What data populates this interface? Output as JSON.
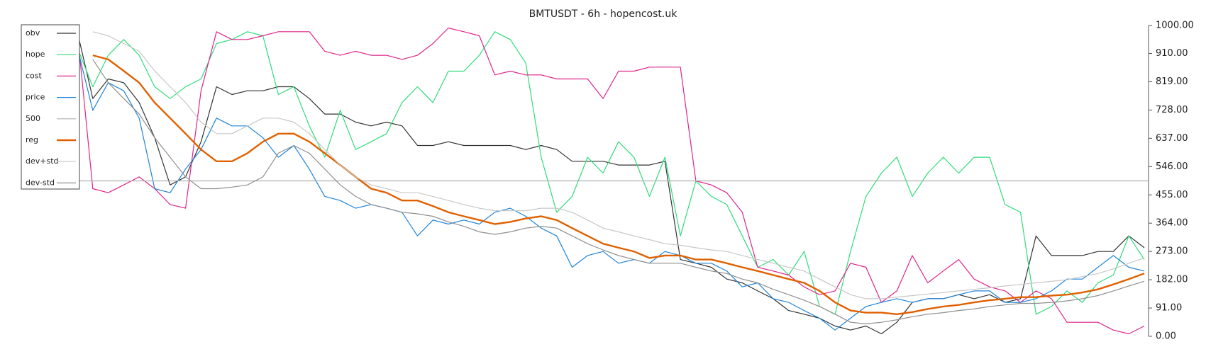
{
  "chart_data": {
    "type": "line",
    "title": "BMTUSDT - 6h - hopencost.uk",
    "ylim": [
      0,
      1000
    ],
    "yticks": [
      {
        "value": 0,
        "label": "0.00"
      },
      {
        "value": 91,
        "label": "91.00"
      },
      {
        "value": 182,
        "label": "182.00"
      },
      {
        "value": 273,
        "label": "273.00"
      },
      {
        "value": 364,
        "label": "364.00"
      },
      {
        "value": 455,
        "label": "455.00"
      },
      {
        "value": 546,
        "label": "546.00"
      },
      {
        "value": 637,
        "label": "637.00"
      },
      {
        "value": 728,
        "label": "728.00"
      },
      {
        "value": 819,
        "label": "819.00"
      },
      {
        "value": 910,
        "label": "910.00"
      },
      {
        "value": 1000,
        "label": "1000.00"
      }
    ],
    "legend": "top-left",
    "series": [
      {
        "name": "obv",
        "color": "#333333",
        "values": [
          980,
          765,
          828,
          816,
          752,
          639,
          487,
          513,
          626,
          803,
          778,
          790,
          790,
          803,
          803,
          765,
          715,
          715,
          689,
          677,
          689,
          677,
          614,
          614,
          626,
          614,
          614,
          614,
          614,
          601,
          614,
          601,
          563,
          563,
          563,
          551,
          551,
          551,
          563,
          247,
          235,
          222,
          184,
          172,
          146,
          121,
          83,
          71,
          58,
          33,
          20,
          33,
          8,
          45,
          109,
          121,
          121,
          134,
          121,
          134,
          109,
          121,
          323,
          260,
          260,
          260,
          273,
          273,
          323,
          285
        ]
      },
      {
        "name": "hope",
        "color": "#2fdc7a",
        "values": [
          929,
          803,
          904,
          955,
          904,
          803,
          765,
          803,
          828,
          942,
          955,
          980,
          967,
          778,
          803,
          677,
          576,
          727,
          601,
          626,
          652,
          752,
          803,
          752,
          853,
          853,
          904,
          980,
          955,
          879,
          576,
          399,
          450,
          576,
          525,
          626,
          576,
          450,
          576,
          323,
          500,
          450,
          424,
          323,
          222,
          247,
          197,
          273,
          96,
          71,
          273,
          450,
          525,
          576,
          450,
          525,
          576,
          525,
          576,
          576,
          424,
          399,
          71,
          96,
          146,
          109,
          172,
          197,
          323,
          247
        ]
      },
      {
        "name": "cost",
        "color": "#e0248a",
        "values": [
          980,
          475,
          462,
          487,
          513,
          475,
          424,
          412,
          790,
          980,
          955,
          955,
          967,
          980,
          980,
          980,
          917,
          904,
          917,
          904,
          904,
          891,
          904,
          942,
          992,
          980,
          967,
          841,
          853,
          841,
          841,
          828,
          828,
          828,
          765,
          853,
          853,
          866,
          866,
          866,
          500,
          487,
          462,
          399,
          222,
          210,
          197,
          159,
          134,
          146,
          235,
          222,
          109,
          146,
          260,
          172,
          210,
          247,
          184,
          159,
          146,
          109,
          146,
          121,
          45,
          45,
          45,
          20,
          8,
          33
        ]
      },
      {
        "name": "price",
        "color": "#1f84d8",
        "values": [
          929,
          727,
          816,
          790,
          702,
          475,
          462,
          538,
          601,
          702,
          677,
          677,
          639,
          576,
          614,
          538,
          450,
          437,
          412,
          424,
          412,
          399,
          323,
          374,
          361,
          374,
          361,
          399,
          412,
          386,
          348,
          323,
          222,
          260,
          273,
          235,
          247,
          235,
          273,
          260,
          235,
          235,
          210,
          159,
          172,
          121,
          109,
          83,
          58,
          20,
          58,
          96,
          109,
          121,
          109,
          121,
          121,
          134,
          146,
          146,
          109,
          109,
          121,
          146,
          184,
          184,
          222,
          260,
          222,
          210
        ]
      },
      {
        "name": "500",
        "color": "#b0b0b0",
        "value": 500
      },
      {
        "name": "reg",
        "color": "#e06000",
        "values": [
          null,
          904,
          891,
          854,
          816,
          752,
          702,
          652,
          601,
          563,
          563,
          589,
          626,
          652,
          652,
          626,
          589,
          551,
          513,
          475,
          462,
          437,
          437,
          419,
          399,
          386,
          374,
          361,
          368,
          379,
          386,
          374,
          348,
          323,
          298,
          285,
          273,
          252,
          260,
          260,
          247,
          247,
          235,
          222,
          210,
          197,
          184,
          172,
          146,
          109,
          83,
          76,
          76,
          71,
          78,
          88,
          96,
          101,
          109,
          116,
          121,
          126,
          126,
          131,
          134,
          141,
          151,
          167,
          184,
          202
        ]
      },
      {
        "name": "dev+std",
        "color": "#c8c8c8",
        "values": [
          null,
          980,
          967,
          942,
          917,
          854,
          803,
          752,
          689,
          652,
          652,
          677,
          702,
          702,
          689,
          652,
          601,
          551,
          513,
          487,
          475,
          462,
          462,
          450,
          437,
          424,
          412,
          404,
          404,
          404,
          412,
          412,
          399,
          374,
          348,
          336,
          323,
          311,
          298,
          293,
          285,
          278,
          273,
          260,
          247,
          235,
          222,
          210,
          184,
          159,
          134,
          121,
          121,
          126,
          131,
          136,
          141,
          146,
          151,
          156,
          162,
          167,
          172,
          177,
          182,
          192,
          202,
          217,
          235,
          252
        ]
      },
      {
        "name": "dev-std",
        "color": "#8f8f8f",
        "values": [
          null,
          891,
          816,
          765,
          715,
          639,
          576,
          513,
          475,
          475,
          480,
          487,
          513,
          589,
          614,
          589,
          538,
          487,
          450,
          424,
          412,
          399,
          394,
          386,
          368,
          354,
          336,
          328,
          336,
          348,
          354,
          348,
          323,
          298,
          278,
          260,
          247,
          235,
          235,
          235,
          222,
          210,
          202,
          184,
          172,
          151,
          134,
          116,
          96,
          71,
          45,
          40,
          45,
          53,
          63,
          71,
          76,
          83,
          88,
          96,
          101,
          106,
          106,
          109,
          114,
          121,
          131,
          146,
          162,
          177
        ]
      }
    ]
  }
}
